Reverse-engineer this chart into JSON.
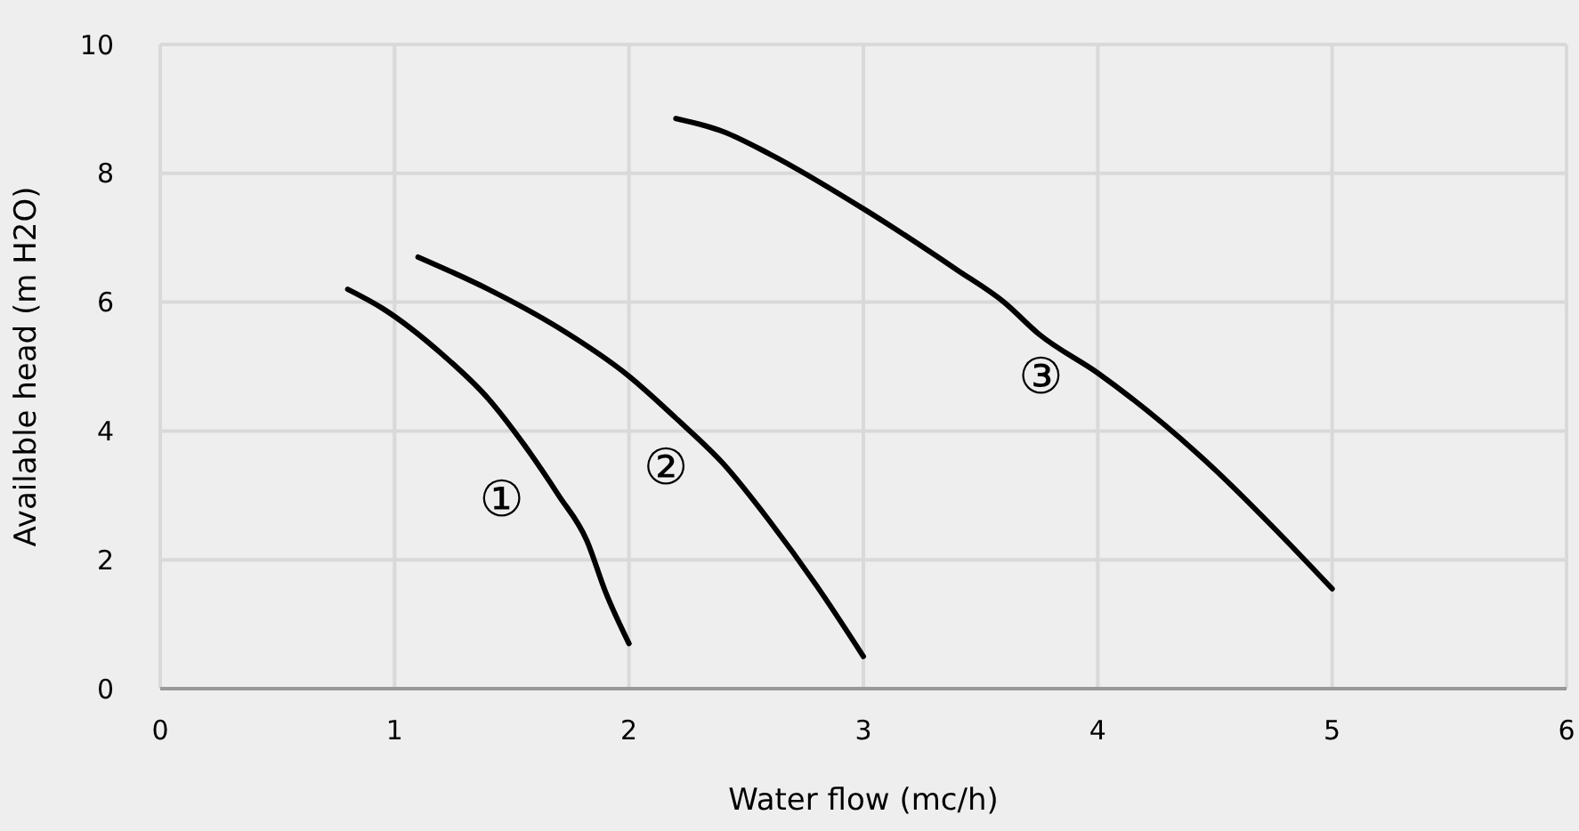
{
  "chart_data": {
    "type": "line",
    "xlabel": "Water flow (mc/h)",
    "ylabel": "Available head (m H2O)",
    "xlim": [
      0,
      6
    ],
    "xticks": [
      0,
      1,
      2,
      3,
      4,
      5,
      6
    ],
    "ylim": [
      0,
      10
    ],
    "yticks": [
      0,
      2,
      4,
      6,
      8,
      10
    ],
    "grid": true,
    "marker": "none",
    "line_style": "solid",
    "series": [
      {
        "name": "①",
        "color": "#000000",
        "x": [
          0.8,
          0.95,
          1.2,
          1.4,
          1.55,
          1.7,
          1.82,
          1.9,
          2.0
        ],
        "values": [
          6.2,
          5.9,
          5.2,
          4.5,
          3.8,
          3.0,
          2.3,
          1.5,
          0.7
        ]
      },
      {
        "name": "②",
        "color": "#000000",
        "x": [
          1.1,
          1.4,
          1.7,
          2.0,
          2.2,
          2.4,
          2.6,
          2.8,
          3.0
        ],
        "values": [
          6.7,
          6.2,
          5.6,
          4.85,
          4.2,
          3.5,
          2.6,
          1.6,
          0.5
        ]
      },
      {
        "name": "③",
        "color": "#000000",
        "x": [
          2.2,
          2.4,
          2.6,
          3.0,
          3.4,
          3.6,
          3.75,
          4.0,
          4.5,
          4.75,
          5.0
        ],
        "values": [
          8.85,
          8.65,
          8.3,
          7.45,
          6.5,
          6.0,
          5.5,
          4.9,
          3.4,
          2.5,
          1.55
        ]
      }
    ]
  }
}
